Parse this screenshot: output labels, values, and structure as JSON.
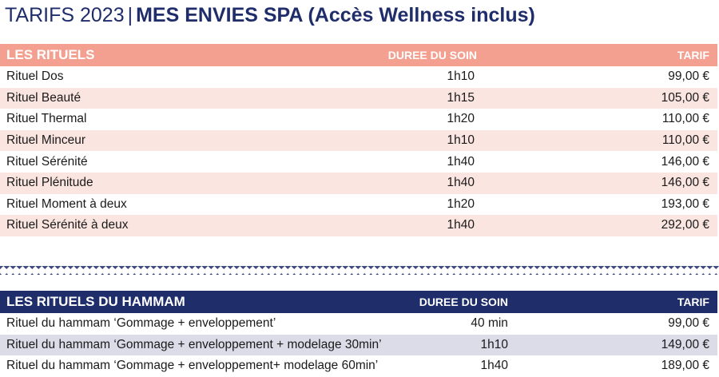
{
  "title": {
    "prefix": "TARIFS 2023",
    "separator": "|",
    "main": "MES ENVIES SPA (Accès Wellness inclus)"
  },
  "rituels": {
    "header": {
      "name": "LES RITUELS",
      "duration": "DUREE DU SOIN",
      "price": "TARIF"
    },
    "rows": [
      {
        "name": "Rituel Dos",
        "duration": "1h10",
        "price": "99,00 €"
      },
      {
        "name": "Rituel Beauté",
        "duration": "1h15",
        "price": "105,00 €"
      },
      {
        "name": "Rituel Thermal",
        "duration": "1h20",
        "price": "110,00 €"
      },
      {
        "name": "Rituel Minceur",
        "duration": "1h10",
        "price": "110,00 €"
      },
      {
        "name": "Rituel Sérénité",
        "duration": "1h40",
        "price": "146,00 €"
      },
      {
        "name": "Rituel Plénitude",
        "duration": "1h40",
        "price": "146,00 €"
      },
      {
        "name": "Rituel Moment à deux",
        "duration": "1h20",
        "price": "193,00 €"
      },
      {
        "name": "Rituel Sérénité à deux",
        "duration": "1h40",
        "price": "292,00 €"
      }
    ]
  },
  "hammam": {
    "header": {
      "name": "LES RITUELS DU HAMMAM",
      "duration": "DUREE DU SOIN",
      "price": "TARIF"
    },
    "rows": [
      {
        "name": "Rituel du hammam ‘Gommage + enveloppement’",
        "duration": "40 min",
        "price": "99,00 €"
      },
      {
        "name": "Rituel du hammam ‘Gommage + enveloppement + modelage 30min’",
        "duration": "1h10",
        "price": "149,00 €"
      },
      {
        "name": "Rituel du hammam ‘Gommage + enveloppement+ modelage 60min’",
        "duration": "1h40",
        "price": "189,00 €"
      }
    ]
  },
  "colors": {
    "navy": "#1f2d6b",
    "salmon": "#f4a090",
    "salmon_light": "#fbe5e0",
    "lavender_light": "#dcdce8"
  }
}
